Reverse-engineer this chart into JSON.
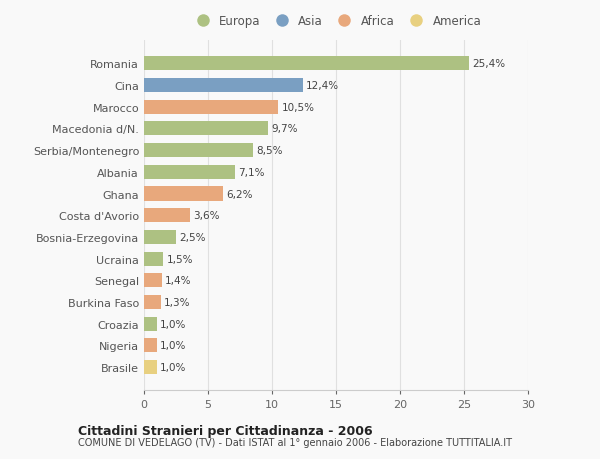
{
  "countries": [
    "Romania",
    "Cina",
    "Marocco",
    "Macedonia d/N.",
    "Serbia/Montenegro",
    "Albania",
    "Ghana",
    "Costa d'Avorio",
    "Bosnia-Erzegovina",
    "Ucraina",
    "Senegal",
    "Burkina Faso",
    "Croazia",
    "Nigeria",
    "Brasile"
  ],
  "values": [
    25.4,
    12.4,
    10.5,
    9.7,
    8.5,
    7.1,
    6.2,
    3.6,
    2.5,
    1.5,
    1.4,
    1.3,
    1.0,
    1.0,
    1.0
  ],
  "labels": [
    "25,4%",
    "12,4%",
    "10,5%",
    "9,7%",
    "8,5%",
    "7,1%",
    "6,2%",
    "3,6%",
    "2,5%",
    "1,5%",
    "1,4%",
    "1,3%",
    "1,0%",
    "1,0%",
    "1,0%"
  ],
  "continents": [
    "Europa",
    "Asia",
    "Africa",
    "Europa",
    "Europa",
    "Europa",
    "Africa",
    "Africa",
    "Europa",
    "Europa",
    "Africa",
    "Africa",
    "Europa",
    "Africa",
    "America"
  ],
  "colors": {
    "Europa": "#adc182",
    "Asia": "#7a9fc2",
    "Africa": "#e8a87c",
    "America": "#e8d080"
  },
  "legend_order": [
    "Europa",
    "Asia",
    "Africa",
    "America"
  ],
  "xlim": [
    0,
    30
  ],
  "xticks": [
    0,
    5,
    10,
    15,
    20,
    25,
    30
  ],
  "title": "Cittadini Stranieri per Cittadinanza - 2006",
  "subtitle": "COMUNE DI VEDELAGO (TV) - Dati ISTAT al 1° gennaio 2006 - Elaborazione TUTTITALIA.IT",
  "background_color": "#f9f9f9",
  "grid_color": "#e0e0e0"
}
